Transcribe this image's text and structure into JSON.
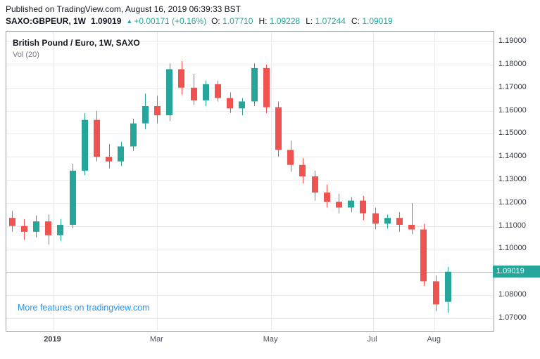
{
  "header": {
    "published_line": "Published on TradingView.com, August 16, 2019 06:39:33 BST",
    "symbol": "SAXO:GBPEUR, 1W",
    "last_price": "1.09019",
    "change_arrow": "▲",
    "change_text": "+0.00171 (+0.16%)",
    "ohlc": [
      {
        "label": "O:",
        "value": "1.07710"
      },
      {
        "label": "H:",
        "value": "1.09228"
      },
      {
        "label": "L:",
        "value": "1.07244"
      },
      {
        "label": "C:",
        "value": "1.09019"
      }
    ]
  },
  "chart": {
    "title": "British Pound / Euro, 1W, SAXO",
    "indicator": "Vol (20)",
    "watermark_link": "More features on tradingview.com",
    "current_price_label": "1.09019"
  },
  "colors": {
    "up": "#26a69a",
    "down": "#ef5350",
    "grid": "#ebebeb",
    "current_price_line": "#8fc6e6",
    "badge_bg": "#26a69a",
    "link": "#2196f3",
    "green_value": "#26a69a",
    "axis_text": "#363a45"
  },
  "chart_data": {
    "type": "candlestick",
    "symbol": "SAXO:GBPEUR",
    "interval": "1W",
    "title": "British Pound / Euro, 1W, SAXO",
    "current_price": 1.09019,
    "current_ohlc": {
      "open": 1.0771,
      "high": 1.09228,
      "low": 1.07244,
      "close": 1.09019
    },
    "price_axis": {
      "min": 1.0645,
      "max": 1.1943,
      "ticks": [
        1.19,
        1.18,
        1.17,
        1.16,
        1.15,
        1.14,
        1.13,
        1.12,
        1.11,
        1.1,
        1.09,
        1.08,
        1.07
      ],
      "tick_labels": [
        "1.19000",
        "1.18000",
        "1.17000",
        "1.16000",
        "1.15000",
        "1.14000",
        "1.13000",
        "1.12000",
        "1.11000",
        "1.10000",
        "1.09000",
        "1.08000",
        "1.07000"
      ]
    },
    "time_axis": [
      {
        "label": "2019",
        "index": 3.4,
        "emphasis": true
      },
      {
        "label": "Mar",
        "index": 12.0
      },
      {
        "label": "May",
        "index": 21.4
      },
      {
        "label": "Jul",
        "index": 29.8
      },
      {
        "label": "Aug",
        "index": 34.9
      }
    ],
    "candles_format": [
      "open",
      "high",
      "low",
      "close"
    ],
    "candles": [
      [
        1.1135,
        1.1165,
        1.1075,
        1.11
      ],
      [
        1.11,
        1.113,
        1.104,
        1.1075
      ],
      [
        1.1075,
        1.1145,
        1.105,
        1.112
      ],
      [
        1.112,
        1.115,
        1.102,
        1.106
      ],
      [
        1.106,
        1.113,
        1.1035,
        1.1105
      ],
      [
        1.1105,
        1.137,
        1.109,
        1.134
      ],
      [
        1.134,
        1.159,
        1.132,
        1.156
      ],
      [
        1.156,
        1.16,
        1.138,
        1.14
      ],
      [
        1.14,
        1.1455,
        1.135,
        1.138
      ],
      [
        1.138,
        1.1465,
        1.136,
        1.1445
      ],
      [
        1.1445,
        1.1565,
        1.1425,
        1.1545
      ],
      [
        1.1545,
        1.1675,
        1.152,
        1.162
      ],
      [
        1.162,
        1.1665,
        1.1545,
        1.158
      ],
      [
        1.158,
        1.1805,
        1.1555,
        1.178
      ],
      [
        1.178,
        1.1815,
        1.167,
        1.17
      ],
      [
        1.17,
        1.176,
        1.1625,
        1.1645
      ],
      [
        1.1645,
        1.173,
        1.162,
        1.1715
      ],
      [
        1.1715,
        1.173,
        1.164,
        1.1655
      ],
      [
        1.1655,
        1.168,
        1.159,
        1.161
      ],
      [
        1.161,
        1.1655,
        1.158,
        1.164
      ],
      [
        1.164,
        1.1805,
        1.162,
        1.1785
      ],
      [
        1.1785,
        1.18,
        1.159,
        1.1615
      ],
      [
        1.1615,
        1.164,
        1.14,
        1.143
      ],
      [
        1.143,
        1.147,
        1.1335,
        1.1365
      ],
      [
        1.1365,
        1.1395,
        1.1285,
        1.1315
      ],
      [
        1.1315,
        1.134,
        1.121,
        1.1245
      ],
      [
        1.1245,
        1.128,
        1.118,
        1.1205
      ],
      [
        1.1205,
        1.124,
        1.1155,
        1.118
      ],
      [
        1.118,
        1.1225,
        1.116,
        1.121
      ],
      [
        1.121,
        1.123,
        1.1125,
        1.1155
      ],
      [
        1.1155,
        1.118,
        1.1085,
        1.111
      ],
      [
        1.111,
        1.115,
        1.109,
        1.1135
      ],
      [
        1.1135,
        1.116,
        1.1075,
        1.1105
      ],
      [
        1.1105,
        1.12,
        1.1065,
        1.1085
      ],
      [
        1.1085,
        1.111,
        1.084,
        1.086
      ],
      [
        1.086,
        1.0885,
        1.073,
        1.076
      ],
      [
        1.0771,
        1.09228,
        1.07244,
        1.09019
      ]
    ]
  }
}
